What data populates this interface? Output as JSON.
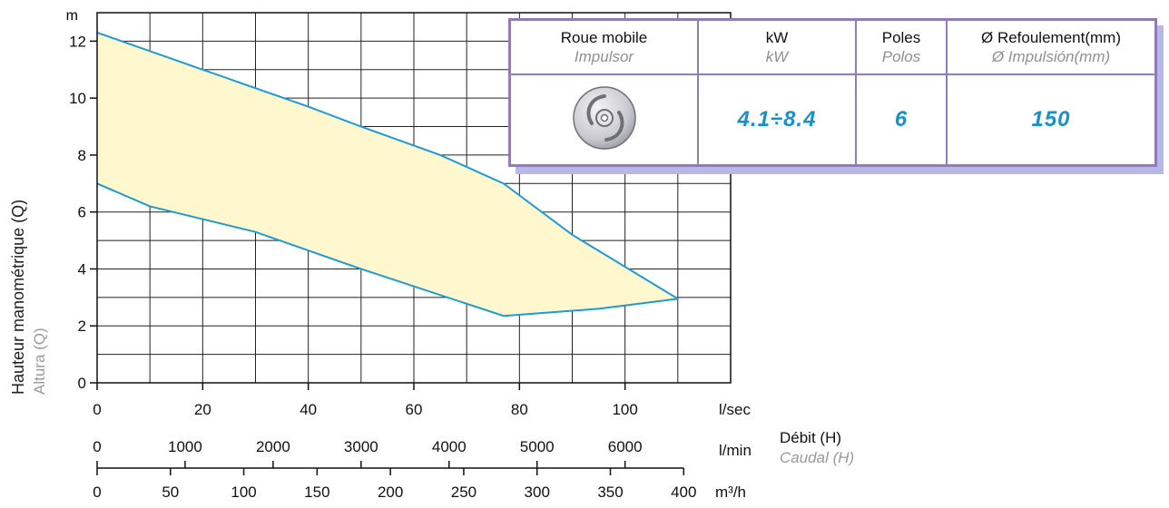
{
  "chart_data": {
    "type": "area",
    "y_axis": {
      "unit_label": "m",
      "range": [
        0,
        13
      ],
      "ticks": [
        0,
        2,
        4,
        6,
        8,
        10,
        12
      ],
      "title": "Hauteur manométrique (Q)",
      "subtitle": "Altura (Q)"
    },
    "x_axes": [
      {
        "unit": "l/sec",
        "range": [
          0,
          120
        ],
        "ticks": [
          0,
          20,
          40,
          60,
          80,
          100
        ]
      },
      {
        "unit": "l/min",
        "ticks": [
          0,
          1000,
          2000,
          3000,
          4000,
          5000,
          6000
        ]
      },
      {
        "unit": "m³/h",
        "ticks": [
          0,
          50,
          100,
          150,
          200,
          250,
          300,
          350,
          400
        ]
      }
    ],
    "flow_label": {
      "title": "Débit (H)",
      "subtitle": "Caudal (H)"
    },
    "grid": true,
    "fill_color": "#fff8cf",
    "line_color": "#1e9ad6",
    "series": [
      {
        "values": [
          [
            0,
            12.3
          ],
          [
            20,
            11.0
          ],
          [
            40,
            9.7
          ],
          [
            50,
            9.0
          ],
          [
            65,
            8.0
          ],
          [
            77,
            7.0
          ],
          [
            90,
            5.2
          ],
          [
            110,
            2.95
          ]
        ]
      },
      {
        "values": [
          [
            0,
            7.0
          ],
          [
            10,
            6.2
          ],
          [
            30,
            5.3
          ],
          [
            50,
            4.0
          ],
          [
            77,
            2.35
          ],
          [
            95,
            2.6
          ],
          [
            110,
            2.95
          ]
        ]
      }
    ]
  },
  "spec_table": {
    "headers": [
      {
        "label": "Roue mobile",
        "sub": "Impulsor"
      },
      {
        "label": "kW",
        "sub": "kW"
      },
      {
        "label": "Poles",
        "sub": "Polos"
      },
      {
        "label": "Ø Refoulement(mm)",
        "sub": "Ø Impulsión(mm)"
      }
    ],
    "impeller_icon": "impeller-icon",
    "values": {
      "kw": "4.1÷8.4",
      "poles": "6",
      "outlet": "150"
    }
  }
}
